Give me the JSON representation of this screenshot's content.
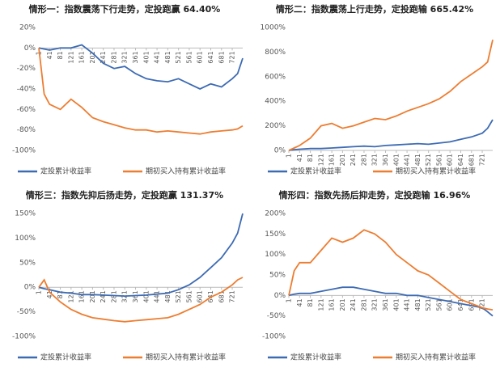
{
  "chart_data": [
    {
      "type": "line",
      "title": "情形一：指数震荡下行走势，定投跑赢 64.40%",
      "x": [
        1,
        21,
        41,
        81,
        121,
        161,
        201,
        241,
        281,
        321,
        361,
        401,
        441,
        481,
        521,
        561,
        601,
        641,
        681,
        721,
        741,
        760
      ],
      "xlim": [
        1,
        760
      ],
      "xticks": [
        1,
        41,
        81,
        121,
        161,
        201,
        241,
        281,
        321,
        361,
        401,
        441,
        481,
        521,
        561,
        601,
        641,
        681,
        721
      ],
      "ylim": [
        -100,
        20
      ],
      "yticks": [
        {
          "value": -100,
          "label": "-100%"
        },
        {
          "value": -80,
          "label": "-80%"
        },
        {
          "value": -60,
          "label": "-60%"
        },
        {
          "value": -40,
          "label": "-40%"
        },
        {
          "value": -20,
          "label": "-20%"
        },
        {
          "value": 0,
          "label": "0%"
        },
        {
          "value": 20,
          "label": "20%"
        }
      ],
      "grid": false,
      "legend": "bottom",
      "series": [
        {
          "name": "定投累计收益率",
          "color": "#3d6bb3",
          "values": [
            0,
            -1,
            -2,
            0,
            0,
            3,
            -5,
            -15,
            -20,
            -18,
            -25,
            -30,
            -32,
            -33,
            -30,
            -35,
            -40,
            -35,
            -38,
            -30,
            -25,
            -10
          ]
        },
        {
          "name": "期初买入持有累计收益率",
          "color": "#ed7d31",
          "values": [
            0,
            -45,
            -55,
            -60,
            -50,
            -58,
            -68,
            -72,
            -75,
            -78,
            -80,
            -80,
            -82,
            -81,
            -82,
            -83,
            -84,
            -82,
            -81,
            -80,
            -79,
            -76
          ]
        }
      ]
    },
    {
      "type": "line",
      "title": "情形二：指数震荡上行走势，定投跑输 665.42%",
      "x": [
        1,
        21,
        41,
        81,
        121,
        161,
        201,
        241,
        281,
        321,
        361,
        401,
        441,
        481,
        521,
        561,
        601,
        641,
        681,
        721,
        741,
        760
      ],
      "xlim": [
        1,
        760
      ],
      "xticks": [
        1,
        41,
        81,
        121,
        161,
        201,
        241,
        281,
        321,
        361,
        401,
        441,
        481,
        521,
        561,
        601,
        641,
        681,
        721
      ],
      "ylim": [
        0,
        1000
      ],
      "yticks": [
        {
          "value": 0,
          "label": "0%"
        },
        {
          "value": 200,
          "label": "200%"
        },
        {
          "value": 400,
          "label": "400%"
        },
        {
          "value": 600,
          "label": "600%"
        },
        {
          "value": 800,
          "label": "800%"
        },
        {
          "value": 1000,
          "label": "1000%"
        }
      ],
      "grid": false,
      "legend": "bottom",
      "series": [
        {
          "name": "定投累计收益率",
          "color": "#3d6bb3",
          "values": [
            0,
            5,
            10,
            15,
            15,
            20,
            25,
            30,
            35,
            30,
            40,
            45,
            50,
            55,
            50,
            60,
            70,
            90,
            110,
            140,
            180,
            250
          ]
        },
        {
          "name": "期初买入持有累计收益率",
          "color": "#ed7d31",
          "values": [
            0,
            20,
            40,
            100,
            200,
            220,
            180,
            200,
            230,
            260,
            250,
            280,
            320,
            350,
            380,
            420,
            480,
            560,
            620,
            680,
            720,
            900
          ]
        }
      ]
    },
    {
      "type": "line",
      "title": "情形三：指数先抑后扬走势，定投跑赢 131.37%",
      "x": [
        1,
        21,
        41,
        81,
        121,
        161,
        201,
        241,
        281,
        321,
        361,
        401,
        441,
        481,
        521,
        561,
        601,
        641,
        681,
        721,
        741,
        760
      ],
      "xlim": [
        1,
        760
      ],
      "xticks": [
        1,
        41,
        81,
        121,
        161,
        201,
        241,
        281,
        321,
        361,
        401,
        441,
        481,
        521,
        561,
        601,
        641,
        681,
        721
      ],
      "ylim": [
        -100,
        150
      ],
      "yticks": [
        {
          "value": -100,
          "label": "-100%"
        },
        {
          "value": -50,
          "label": "-50%"
        },
        {
          "value": 0,
          "label": "0%"
        },
        {
          "value": 50,
          "label": "50%"
        },
        {
          "value": 100,
          "label": "100%"
        },
        {
          "value": 150,
          "label": "150%"
        }
      ],
      "grid": false,
      "legend": "bottom",
      "series": [
        {
          "name": "定投累计收益率",
          "color": "#3d6bb3",
          "values": [
            0,
            -3,
            -5,
            -10,
            -12,
            -15,
            -15,
            -16,
            -17,
            -18,
            -17,
            -16,
            -14,
            -12,
            -5,
            5,
            20,
            40,
            60,
            90,
            110,
            150
          ]
        },
        {
          "name": "期初买入持有累计收益率",
          "color": "#ed7d31",
          "values": [
            0,
            15,
            -10,
            -30,
            -45,
            -55,
            -62,
            -65,
            -68,
            -70,
            -68,
            -66,
            -64,
            -62,
            -55,
            -45,
            -35,
            -20,
            -10,
            5,
            15,
            20
          ]
        }
      ]
    },
    {
      "type": "line",
      "title": "情形四：指数先扬后抑走势，定投跑输 16.96%",
      "x": [
        1,
        21,
        41,
        81,
        121,
        161,
        201,
        241,
        281,
        321,
        361,
        401,
        441,
        481,
        521,
        561,
        601,
        641,
        681,
        721,
        741,
        760
      ],
      "xlim": [
        1,
        760
      ],
      "xticks": [
        1,
        41,
        81,
        121,
        161,
        201,
        241,
        281,
        321,
        361,
        401,
        441,
        481,
        521,
        561,
        601,
        641,
        681,
        721
      ],
      "ylim": [
        -100,
        200
      ],
      "yticks": [
        {
          "value": -100,
          "label": "-100%"
        },
        {
          "value": -50,
          "label": "-50%"
        },
        {
          "value": 0,
          "label": "0%"
        },
        {
          "value": 50,
          "label": "50%"
        },
        {
          "value": 100,
          "label": "100%"
        },
        {
          "value": 150,
          "label": "150%"
        },
        {
          "value": 200,
          "label": "200%"
        }
      ],
      "grid": false,
      "legend": "bottom",
      "series": [
        {
          "name": "定投累计收益率",
          "color": "#3d6bb3",
          "values": [
            0,
            3,
            5,
            5,
            10,
            15,
            20,
            20,
            15,
            10,
            5,
            5,
            0,
            0,
            -5,
            -10,
            -15,
            -20,
            -25,
            -30,
            -40,
            -50
          ]
        },
        {
          "name": "期初买入持有累计收益率",
          "color": "#ed7d31",
          "values": [
            0,
            60,
            80,
            80,
            110,
            140,
            130,
            140,
            160,
            150,
            130,
            100,
            80,
            60,
            50,
            30,
            10,
            -10,
            -20,
            -30,
            -33,
            -35
          ]
        }
      ]
    }
  ]
}
